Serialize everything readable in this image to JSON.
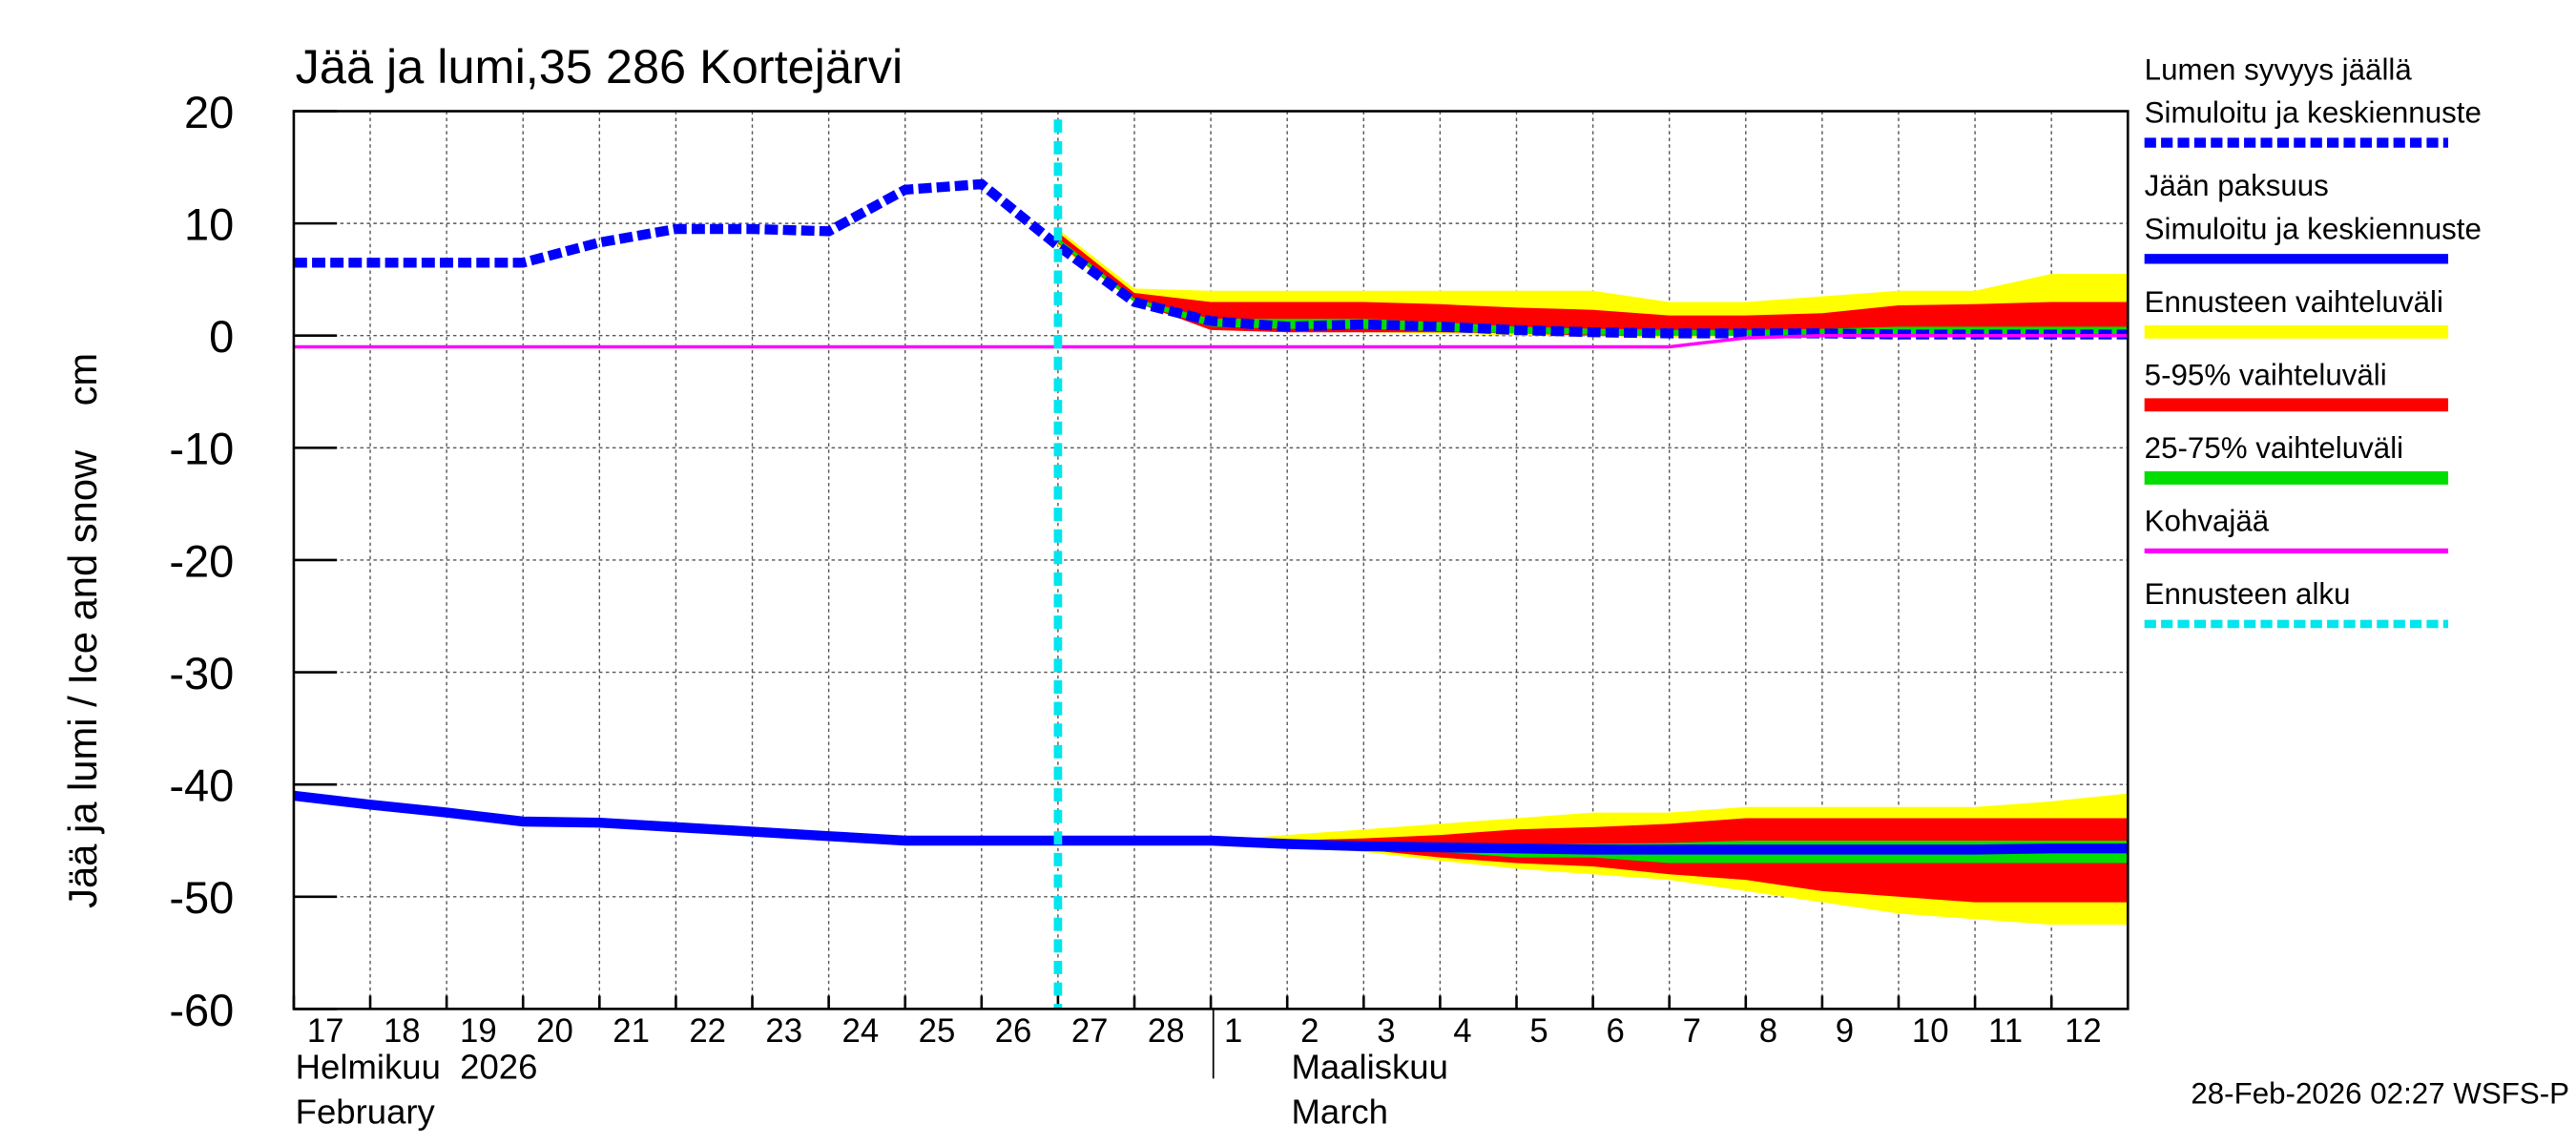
{
  "chart_data": {
    "type": "line",
    "title": "Jää ja lumi,35 286 Kortejärvi",
    "y_label": "Jää ja lumi / Ice and snow    cm",
    "xlim": [
      0,
      24
    ],
    "xticks": [
      {
        "value": 0,
        "label": "17"
      },
      {
        "value": 1,
        "label": "18"
      },
      {
        "value": 2,
        "label": "19"
      },
      {
        "value": 3,
        "label": "20"
      },
      {
        "value": 4,
        "label": "21"
      },
      {
        "value": 5,
        "label": "22"
      },
      {
        "value": 6,
        "label": "23"
      },
      {
        "value": 7,
        "label": "24"
      },
      {
        "value": 8,
        "label": "25"
      },
      {
        "value": 9,
        "label": "26"
      },
      {
        "value": 10,
        "label": "27"
      },
      {
        "value": 11,
        "label": "28"
      },
      {
        "value": 12,
        "label": "1"
      },
      {
        "value": 13,
        "label": "2"
      },
      {
        "value": 14,
        "label": "3"
      },
      {
        "value": 15,
        "label": "4"
      },
      {
        "value": 16,
        "label": "5"
      },
      {
        "value": 17,
        "label": "6"
      },
      {
        "value": 18,
        "label": "7"
      },
      {
        "value": 19,
        "label": "8"
      },
      {
        "value": 20,
        "label": "9"
      },
      {
        "value": 21,
        "label": "10"
      },
      {
        "value": 22,
        "label": "11"
      },
      {
        "value": 23,
        "label": "12"
      }
    ],
    "ylim": [
      -60,
      20
    ],
    "yticks": [
      -60,
      -50,
      -40,
      -30,
      -20,
      -10,
      0,
      10,
      20
    ],
    "grid": true,
    "month_labels": [
      [
        "Helmikuu  2026",
        "February"
      ],
      [
        "Maaliskuu",
        "March"
      ]
    ],
    "footer": "28-Feb-2026 02:27 WSFS-P",
    "x": [
      0,
      1,
      2,
      3,
      4,
      5,
      6,
      7,
      8,
      9,
      10,
      11,
      12,
      13,
      14,
      15,
      16,
      17,
      18,
      19,
      20,
      21,
      22,
      23,
      24
    ],
    "forecast_x": [
      10,
      11,
      12,
      13,
      14,
      15,
      16,
      17,
      18,
      19,
      20,
      21,
      22,
      23,
      24
    ],
    "bands": [
      {
        "label": [
          "Ennusteen vaihteluväli"
        ],
        "color": "#ffff00",
        "snow_high": [
          9.5,
          4.2,
          4,
          4,
          4,
          4,
          4,
          4,
          3,
          3,
          3.5,
          4,
          4,
          5.5,
          5.5
        ],
        "snow_low": [
          8,
          3,
          0.8,
          0.5,
          0.3,
          0.2,
          0,
          0,
          -0.2,
          0,
          0,
          0,
          0,
          0,
          0
        ],
        "ice_high": [
          -45,
          -45,
          -45,
          -44.5,
          -44,
          -43.5,
          -43,
          -42.5,
          -42.5,
          -42,
          -42,
          -42,
          -42,
          -41.5,
          -40.8
        ],
        "ice_low": [
          -45,
          -45,
          -45,
          -45.5,
          -46,
          -46.8,
          -47.5,
          -48,
          -48.5,
          -49.5,
          -50.5,
          -51.5,
          -52,
          -52.5,
          -52.5
        ]
      },
      {
        "label": [
          "5-95% vaihteluväli"
        ],
        "color": "#ff0000",
        "snow_high": [
          9.2,
          3.8,
          3,
          3,
          3,
          2.8,
          2.5,
          2.3,
          1.8,
          1.8,
          2,
          2.7,
          2.8,
          3,
          3
        ],
        "snow_low": [
          8.2,
          3,
          0.5,
          0.3,
          0.3,
          0.3,
          0.2,
          0,
          0,
          0,
          0,
          0,
          0,
          0,
          0
        ],
        "ice_high": [
          -45,
          -45,
          -45,
          -45,
          -44.8,
          -44.5,
          -44,
          -43.8,
          -43.5,
          -43,
          -43,
          -43,
          -43,
          -43,
          -43
        ],
        "ice_low": [
          -45,
          -45,
          -45,
          -45.5,
          -45.8,
          -46.5,
          -47,
          -47.3,
          -48,
          -48.5,
          -49.5,
          -50,
          -50.5,
          -50.5,
          -50.5
        ]
      },
      {
        "label": [
          "25-75% vaihteluväli"
        ],
        "color": "#00dd00",
        "snow_high": [
          8.7,
          3.3,
          1.5,
          1.5,
          1.5,
          1.2,
          0.8,
          0.6,
          0.5,
          0.5,
          0.6,
          0.8,
          0.8,
          0.8,
          0.8
        ],
        "snow_low": [
          8.3,
          3,
          0.8,
          0.6,
          0.6,
          0.4,
          0.2,
          0.1,
          0,
          0,
          0,
          0,
          0,
          0,
          0
        ],
        "ice_high": [
          -45,
          -45,
          -45,
          -45.2,
          -45.3,
          -45.3,
          -45.3,
          -45.3,
          -45.2,
          -45,
          -45,
          -45,
          -45,
          -45,
          -45
        ],
        "ice_low": [
          -45,
          -45,
          -45,
          -45.5,
          -45.8,
          -46,
          -46.5,
          -46.5,
          -47,
          -47,
          -47,
          -47,
          -47,
          -47,
          -47
        ]
      }
    ],
    "series": [
      {
        "label": [
          "Lumen syvyys jäällä",
          "Simuloitu ja keskiennuste"
        ],
        "color": "#0000ff",
        "dashed": true,
        "values": [
          6.5,
          6.5,
          6.5,
          6.5,
          8.3,
          9.5,
          9.5,
          9.3,
          13,
          13.5,
          8,
          3,
          1.3,
          0.8,
          1,
          0.8,
          0.5,
          0.3,
          0.2,
          0.2,
          0.2,
          0.1,
          0.1,
          0.1,
          0.1
        ]
      },
      {
        "label": [
          "Jään paksuus",
          "Simuloitu ja keskiennuste"
        ],
        "color": "#0000ff",
        "dashed": false,
        "values": [
          -41,
          -41.8,
          -42.5,
          -43.3,
          -43.4,
          -43.8,
          -44.2,
          -44.6,
          -45,
          -45,
          -45,
          -45,
          -45,
          -45.3,
          -45.5,
          -45.6,
          -45.7,
          -45.8,
          -45.8,
          -45.8,
          -45.8,
          -45.8,
          -45.8,
          -45.7,
          -45.7
        ]
      },
      {
        "label": [
          "Kohvajää"
        ],
        "color": "#ff00ff",
        "dashed": false,
        "values": [
          -1,
          -1,
          -1,
          -1,
          -1,
          -1,
          -1,
          -1,
          -1,
          -1,
          -1,
          -1,
          -1,
          -1,
          -1,
          -1,
          -1,
          -1,
          -1,
          -0.2,
          0,
          0,
          0,
          0,
          0
        ]
      }
    ],
    "forecast_start": {
      "label": [
        "Ennusteen alku"
      ],
      "color": "#00e5ee",
      "value": 10
    }
  }
}
